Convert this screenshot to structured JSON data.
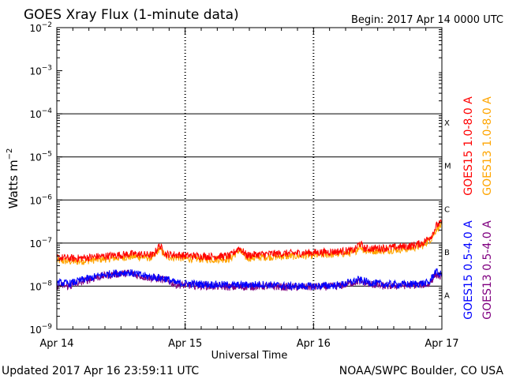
{
  "title": "GOES Xray Flux (1-minute data)",
  "begin_label": "Begin:  2017 Apr 14 0000 UTC",
  "footer_left": "Updated 2017 Apr 16 23:59:11 UTC",
  "footer_right": "NOAA/SWPC Boulder, CO USA",
  "colors": {
    "goes15_long": "#ff0000",
    "goes13_long": "#ffa500",
    "goes15_short": "#0000ff",
    "goes13_short": "#800080"
  },
  "chart_data": {
    "type": "line",
    "title": "GOES Xray Flux (1-minute data)",
    "xlabel": "Universal Time",
    "ylabel": "Watts m^-2",
    "x_ticks": [
      "Apr 14",
      "Apr 15",
      "Apr 16",
      "Apr 17"
    ],
    "x_range_days": [
      0,
      3
    ],
    "y_scale": "log",
    "ylim": [
      1e-09,
      0.01
    ],
    "y_ticks": [
      {
        "mantissa": "10",
        "exp": "-9"
      },
      {
        "mantissa": "10",
        "exp": "-8"
      },
      {
        "mantissa": "10",
        "exp": "-7"
      },
      {
        "mantissa": "10",
        "exp": "-6"
      },
      {
        "mantissa": "10",
        "exp": "-5"
      },
      {
        "mantissa": "10",
        "exp": "-4"
      },
      {
        "mantissa": "10",
        "exp": "-3"
      },
      {
        "mantissa": "10",
        "exp": "-2"
      }
    ],
    "flare_classes": [
      {
        "label": "A",
        "flux": 1e-08
      },
      {
        "label": "B",
        "flux": 1e-07
      },
      {
        "label": "C",
        "flux": 1e-06
      },
      {
        "label": "M",
        "flux": 1e-05
      },
      {
        "label": "X",
        "flux": 0.0001
      }
    ],
    "series": [
      {
        "name": "GOES15 1.0-8.0 A",
        "color_key": "goes15_long",
        "points": [
          [
            0,
            4.6e-08
          ],
          [
            0.15,
            4.4e-08
          ],
          [
            0.3,
            4.8e-08
          ],
          [
            0.45,
            5.2e-08
          ],
          [
            0.6,
            5.6e-08
          ],
          [
            0.75,
            5.2e-08
          ],
          [
            0.8,
            8.8e-08
          ],
          [
            0.85,
            5.5e-08
          ],
          [
            0.95,
            5.3e-08
          ],
          [
            1.0,
            5.1e-08
          ],
          [
            1.2,
            4.9e-08
          ],
          [
            1.35,
            5e-08
          ],
          [
            1.42,
            7.8e-08
          ],
          [
            1.48,
            5.2e-08
          ],
          [
            1.65,
            5.6e-08
          ],
          [
            1.85,
            5.8e-08
          ],
          [
            2.0,
            6e-08
          ],
          [
            2.2,
            6.4e-08
          ],
          [
            2.32,
            6.8e-08
          ],
          [
            2.36,
            1e-07
          ],
          [
            2.4,
            7.4e-08
          ],
          [
            2.6,
            7.8e-08
          ],
          [
            2.75,
            8.5e-08
          ],
          [
            2.85,
            1e-07
          ],
          [
            2.92,
            1.5e-07
          ],
          [
            2.96,
            2.6e-07
          ],
          [
            3.0,
            3e-07
          ]
        ]
      },
      {
        "name": "GOES13 1.0-8.0 A",
        "color_key": "goes13_long",
        "points": [
          [
            0,
            3.9e-08
          ],
          [
            0.15,
            3.7e-08
          ],
          [
            0.3,
            4.1e-08
          ],
          [
            0.45,
            4.5e-08
          ],
          [
            0.6,
            4.9e-08
          ],
          [
            0.75,
            4.5e-08
          ],
          [
            0.8,
            7.6e-08
          ],
          [
            0.85,
            4.8e-08
          ],
          [
            0.95,
            4.6e-08
          ],
          [
            1.0,
            4.4e-08
          ],
          [
            1.2,
            4.2e-08
          ],
          [
            1.35,
            4.3e-08
          ],
          [
            1.42,
            6.8e-08
          ],
          [
            1.48,
            4.5e-08
          ],
          [
            1.65,
            4.8e-08
          ],
          [
            1.85,
            5e-08
          ],
          [
            2.0,
            5.2e-08
          ],
          [
            2.2,
            5.6e-08
          ],
          [
            2.32,
            6e-08
          ],
          [
            2.36,
            8.8e-08
          ],
          [
            2.4,
            6.5e-08
          ],
          [
            2.6,
            6.9e-08
          ],
          [
            2.75,
            7.5e-08
          ],
          [
            2.85,
            8.8e-08
          ],
          [
            2.92,
            1.3e-07
          ],
          [
            2.96,
            2.2e-07
          ],
          [
            3.0,
            2.6e-07
          ]
        ]
      },
      {
        "name": "GOES15 0.5-4.0 A",
        "color_key": "goes15_short",
        "points": [
          [
            0,
            1.2e-08
          ],
          [
            0.1,
            1.15e-08
          ],
          [
            0.2,
            1.4e-08
          ],
          [
            0.35,
            1.8e-08
          ],
          [
            0.45,
            2e-08
          ],
          [
            0.55,
            2.1e-08
          ],
          [
            0.7,
            1.7e-08
          ],
          [
            0.85,
            1.5e-08
          ],
          [
            0.92,
            1.2e-08
          ],
          [
            1.0,
            1.15e-08
          ],
          [
            1.2,
            1.1e-08
          ],
          [
            1.4,
            1.05e-08
          ],
          [
            1.6,
            1.1e-08
          ],
          [
            1.8,
            1e-08
          ],
          [
            2.0,
            1e-08
          ],
          [
            2.2,
            1.05e-08
          ],
          [
            2.35,
            1.4e-08
          ],
          [
            2.45,
            1.2e-08
          ],
          [
            2.55,
            1.1e-08
          ],
          [
            2.75,
            1.1e-08
          ],
          [
            2.9,
            1.2e-08
          ],
          [
            2.95,
            2.2e-08
          ],
          [
            3.0,
            1.8e-08
          ]
        ]
      },
      {
        "name": "GOES13 0.5-4.0 A",
        "color_key": "goes13_short",
        "points": [
          [
            0,
            1.05e-08
          ],
          [
            0.1,
            1e-08
          ],
          [
            0.2,
            1.3e-08
          ],
          [
            0.35,
            1.7e-08
          ],
          [
            0.45,
            1.9e-08
          ],
          [
            0.55,
            2e-08
          ],
          [
            0.7,
            1.6e-08
          ],
          [
            0.85,
            1.4e-08
          ],
          [
            0.92,
            1.1e-08
          ],
          [
            1.0,
            1.05e-08
          ],
          [
            1.2,
            1e-08
          ],
          [
            1.4,
            9.5e-09
          ],
          [
            1.6,
            1e-08
          ],
          [
            1.8,
            9.5e-09
          ],
          [
            2.0,
            9.5e-09
          ],
          [
            2.2,
            1e-08
          ],
          [
            2.35,
            1.3e-08
          ],
          [
            2.45,
            1.1e-08
          ],
          [
            2.55,
            1e-08
          ],
          [
            2.75,
            1.05e-08
          ],
          [
            2.9,
            1.1e-08
          ],
          [
            2.95,
            1.9e-08
          ],
          [
            3.0,
            1.6e-08
          ]
        ]
      }
    ]
  }
}
